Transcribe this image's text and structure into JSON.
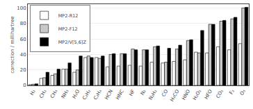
{
  "chart_data": {
    "type": "bar",
    "categories": [
      "H₂",
      "CH₂",
      "CH₄",
      "NH₃",
      "H₂O",
      "C₂H₂",
      "C₂H₄",
      "HCN",
      "HNC",
      "HF",
      "N₂",
      "N₂H₂",
      "CO",
      "H₂CO",
      "HNO",
      "H₂O₂",
      "HFO",
      "CO₂",
      "F₂",
      "O₃"
    ],
    "series": [
      {
        "name": "MP2-R12",
        "color": "white",
        "values": [
          1.0,
          9.0,
          13.0,
          21.0,
          17.0,
          36.0,
          36.0,
          24.0,
          25.0,
          26.0,
          25.0,
          30.0,
          29.0,
          31.0,
          33.0,
          43.0,
          42.0,
          50.0,
          46.0,
          54.0
        ]
      },
      {
        "name": "MP2-F12",
        "color": "#c8c8c8",
        "values": [
          1.5,
          10.0,
          15.0,
          21.0,
          20.0,
          38.0,
          35.0,
          40.0,
          41.0,
          47.0,
          46.0,
          50.0,
          30.0,
          47.0,
          58.0,
          42.0,
          79.0,
          83.0,
          86.0,
          100.0
        ]
      },
      {
        "name": "MP2/V[5,6]Z",
        "color": "black",
        "values": [
          2.0,
          17.0,
          21.0,
          29.0,
          38.0,
          36.0,
          38.0,
          41.0,
          41.0,
          46.0,
          46.0,
          51.0,
          48.0,
          52.0,
          59.0,
          71.0,
          79.0,
          84.0,
          88.0,
          101.0
        ]
      }
    ],
    "ylabel": "correction / millihartree",
    "ylim": [
      0,
      105
    ],
    "yticks": [
      0,
      20,
      40,
      60,
      80,
      100
    ],
    "grid": true,
    "legend": "upper left"
  }
}
